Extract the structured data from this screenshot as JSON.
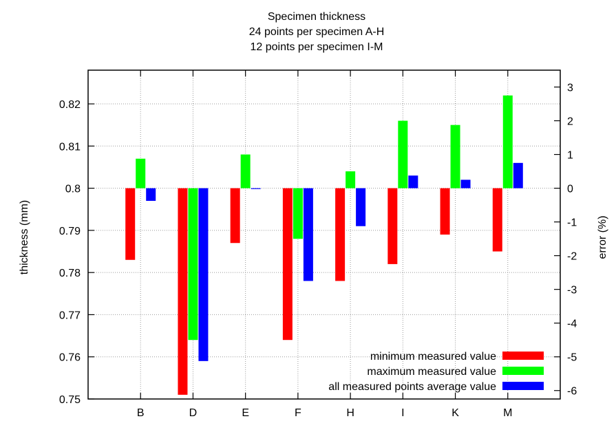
{
  "chart_data": {
    "type": "bar",
    "title_lines": [
      "Specimen thickness",
      "24 points per specimen A-H",
      "12 points per specimen I-M"
    ],
    "xlabel": "",
    "ylabel": "thickness (mm)",
    "y2label": "error (%)",
    "categories": [
      "B",
      "D",
      "E",
      "F",
      "H",
      "I",
      "K",
      "M"
    ],
    "baseline": 0.8,
    "ylim": [
      0.75,
      0.828
    ],
    "y2lim": [
      -6.25,
      3.5
    ],
    "yticks": [
      "0.75",
      "0.76",
      "0.77",
      "0.78",
      "0.79",
      "0.8",
      "0.81",
      "0.82"
    ],
    "y2ticks": [
      "-6",
      "-5",
      "-4",
      "-3",
      "-2",
      "-1",
      "0",
      "1",
      "2",
      "3"
    ],
    "grid": true,
    "legend_position": "bottom-right",
    "series": [
      {
        "name": "minimum measured value",
        "color": "#ff0000",
        "values": [
          0.783,
          0.751,
          0.787,
          0.764,
          0.778,
          0.782,
          0.789,
          0.785
        ]
      },
      {
        "name": "maximum measured value",
        "color": "#00ff00",
        "values": [
          0.807,
          0.764,
          0.808,
          0.788,
          0.804,
          0.816,
          0.815,
          0.822
        ]
      },
      {
        "name": "all measured  points average value",
        "color": "#0000ff",
        "values": [
          0.797,
          0.759,
          0.8,
          0.778,
          0.791,
          0.803,
          0.802,
          0.806
        ]
      }
    ]
  }
}
